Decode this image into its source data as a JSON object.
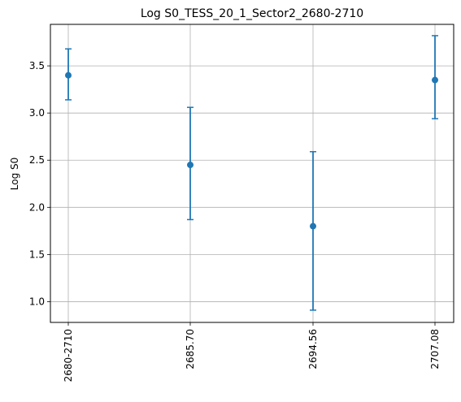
{
  "chart_data": {
    "type": "scatter",
    "title": "Log S0_TESS_20_1_Sector2_2680-2710",
    "xlabel": "",
    "ylabel": "Log S0",
    "categories": [
      "2680-2710",
      "2685.70",
      "2694.56",
      "2707.08"
    ],
    "series": [
      {
        "values": [
          3.4,
          2.45,
          1.8,
          3.35
        ],
        "err_low": [
          3.14,
          1.87,
          0.91,
          2.94
        ],
        "err_high": [
          3.68,
          3.06,
          2.59,
          3.82
        ]
      }
    ],
    "yticks": [
      "1.0",
      "1.5",
      "2.0",
      "2.5",
      "3.0",
      "3.5"
    ],
    "ylim": [
      0.78,
      3.94
    ],
    "grid": true,
    "marker_color": "#1f77b4",
    "error_bars": true
  }
}
